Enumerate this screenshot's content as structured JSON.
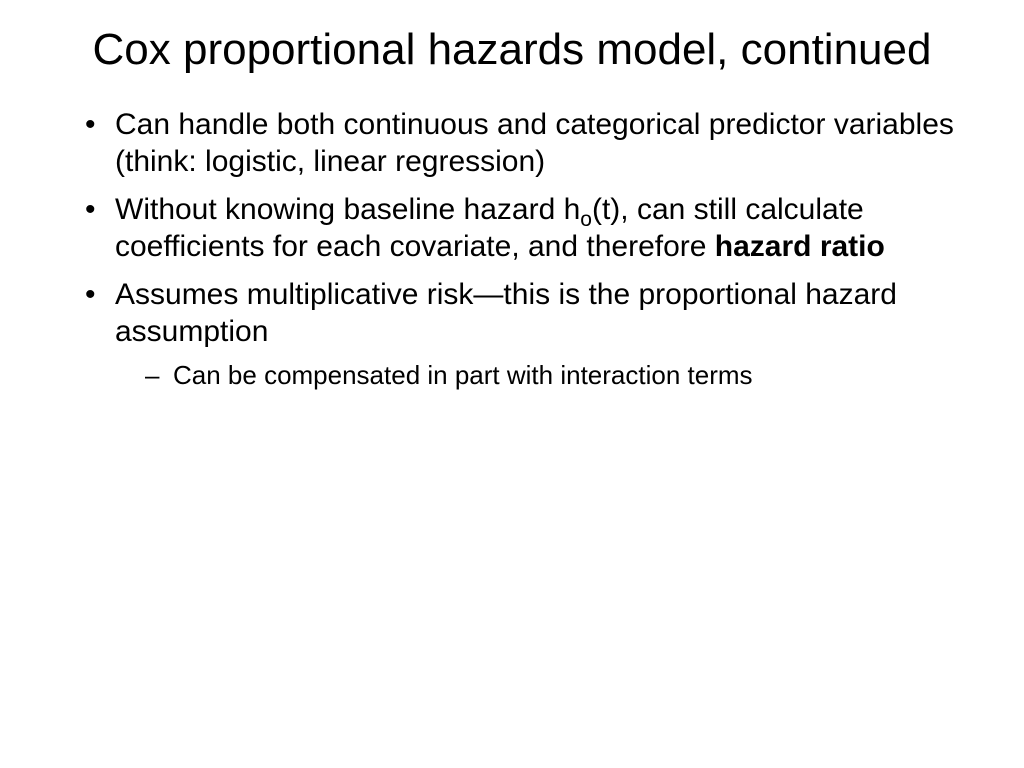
{
  "slide": {
    "title": "Cox proportional hazards model, continued",
    "bullets": [
      {
        "text": "Can handle both continuous and categorical predictor variables (think: logistic, linear regression)"
      },
      {
        "prefix": "Without knowing baseline hazard h",
        "subscript": "o",
        "middle": "(t), can still calculate coefficients for each covariate, and therefore ",
        "bold": "hazard ratio"
      },
      {
        "text": "Assumes multiplicative risk—this is the proportional hazard assumption",
        "sub": [
          "Can be compensated in part with interaction terms"
        ]
      }
    ]
  },
  "style": {
    "background": "#ffffff",
    "text_color": "#000000",
    "title_fontsize": 44,
    "bullet_fontsize": 30,
    "sub_bullet_fontsize": 26,
    "font_family": "Arial"
  }
}
